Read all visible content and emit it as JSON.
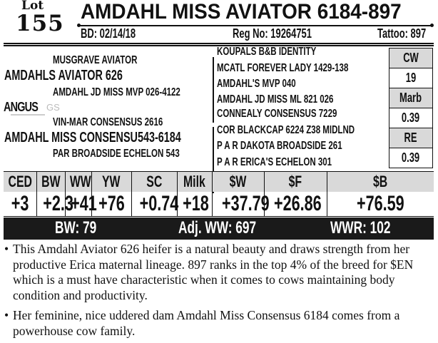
{
  "lot": {
    "label": "Lot",
    "number": "155"
  },
  "title": "AMDAHL MISS AVIATOR 6184-897",
  "info": {
    "bd": "BD: 02/14/18",
    "reg": "Reg No: 19264751",
    "tattoo": "Tattoo: 897"
  },
  "pedigree": {
    "sire_sire": "MUSGRAVE AVIATOR",
    "sire": "AMDAHLS AVIATOR 626",
    "sire_dam": "AMDAHL JD MISS MVP 026-4122",
    "dam_sire": "VIN-MAR CONSENSUS 2616",
    "dam": "AMDAHL MISS CONSENSU543-6184",
    "dam_dam": "PAR BROADSIDE ECHELON 543",
    "great": [
      "KOUPALS B&B IDENTITY",
      "MCATL FOREVER LADY 1429-138",
      "AMDAHL'S MVP 040",
      "AMDAHL JD MISS ML 821 026",
      "CONNEALY CONSENSUS 7229",
      "COR BLACKCAP 6224 Z38 MIDLND",
      "P A R DAKOTA BROADSIDE 261",
      "P A R ERICA'S ECHELON 301"
    ]
  },
  "logo": {
    "text": "ANGUS",
    "suffix": "GS"
  },
  "carcass": [
    {
      "label": "CW",
      "value": "19"
    },
    {
      "label": "Marb",
      "value": "0.39"
    },
    {
      "label": "RE",
      "value": "0.39"
    }
  ],
  "epd": {
    "headers": [
      "CED",
      "BW",
      "WW",
      "YW",
      "SC",
      "Milk",
      "$W",
      "$F",
      "$B"
    ],
    "values": [
      "+3",
      "+2.3",
      "+41",
      "+76",
      "+0.74",
      "+18",
      "+37.79",
      "+26.86",
      "+76.59"
    ]
  },
  "performance": {
    "bw": "BW: 79",
    "adj_ww": "Adj. WW: 697",
    "wwr": "WWR: 102"
  },
  "notes": [
    "This Amdahl Aviator 626 heifer is a natural beauty and draws strength from her productive Erica maternal lineage. 897 ranks in the top 4% of the breed for $EN which is a must have characteristic when it comes to cows maintaining body condition and productivity.",
    "Her feminine, nice uddered dam Amdahl Miss Consensus 6184 comes from a powerhouse cow family."
  ],
  "bullet": "•",
  "colors": {
    "header_gray": "#d9d9d9",
    "bar_black": "#1a1a1a"
  }
}
